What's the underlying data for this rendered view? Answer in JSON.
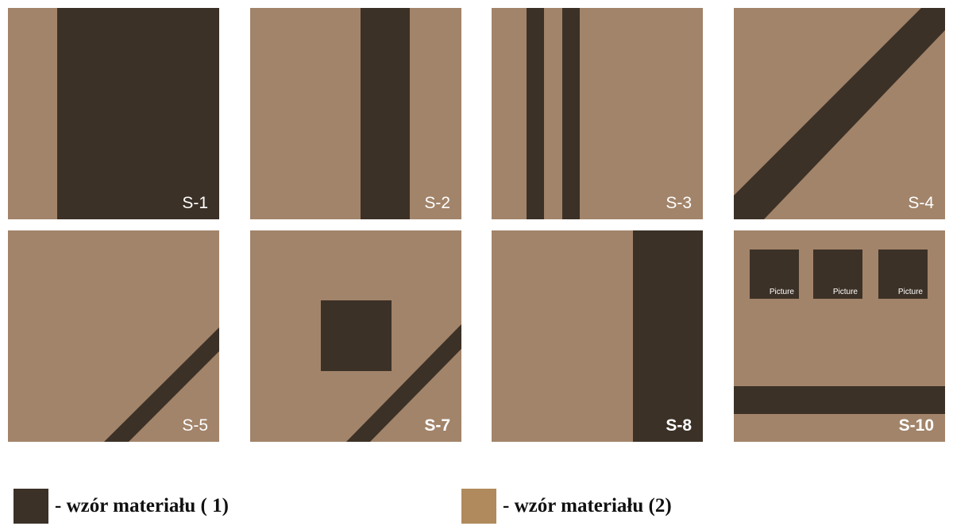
{
  "colors": {
    "material_1": "#3c3127",
    "material_2": "#a2846a"
  },
  "tiles": [
    {
      "code": "S-1"
    },
    {
      "code": "S-2"
    },
    {
      "code": "S-3"
    },
    {
      "code": "S-4"
    },
    {
      "code": "S-5"
    },
    {
      "code": "S-7"
    },
    {
      "code": "S-8"
    },
    {
      "code": "S-10",
      "pictures": [
        "Picture",
        "Picture",
        "Picture"
      ]
    }
  ],
  "legend": [
    {
      "label": "- wzór materiału ( 1)"
    },
    {
      "label": "- wzór materiału (2)"
    }
  ]
}
